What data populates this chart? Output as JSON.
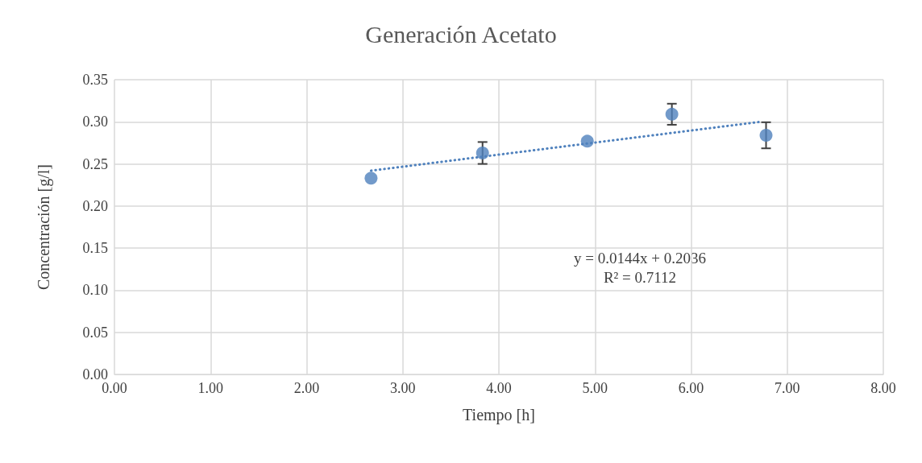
{
  "chart_data": {
    "type": "scatter",
    "title": "Generación Acetato",
    "xlabel": "Tiempo [h]",
    "ylabel": "Concentración [g/l]",
    "xlim": [
      0,
      8
    ],
    "xticks": [
      {
        "value": 0,
        "label": "0.00"
      },
      {
        "value": 1,
        "label": "1.00"
      },
      {
        "value": 2,
        "label": "2.00"
      },
      {
        "value": 3,
        "label": "3.00"
      },
      {
        "value": 4,
        "label": "4.00"
      },
      {
        "value": 5,
        "label": "5.00"
      },
      {
        "value": 6,
        "label": "6.00"
      },
      {
        "value": 7,
        "label": "7.00"
      },
      {
        "value": 8,
        "label": "8.00"
      }
    ],
    "ylim": [
      0,
      0.35
    ],
    "yticks": [
      {
        "value": 0,
        "label": "0.00"
      },
      {
        "value": 0.05,
        "label": "0.05"
      },
      {
        "value": 0.1,
        "label": "0.10"
      },
      {
        "value": 0.15,
        "label": "0.15"
      },
      {
        "value": 0.2,
        "label": "0.20"
      },
      {
        "value": 0.25,
        "label": "0.25"
      },
      {
        "value": 0.3,
        "label": "0.30"
      },
      {
        "value": 0.35,
        "label": "0.35"
      }
    ],
    "grid": true,
    "series": [
      {
        "color": "#4f81bd",
        "marker": "circle",
        "x": [
          2.67,
          3.83,
          4.92,
          5.8,
          6.78
        ],
        "values": [
          0.233,
          0.263,
          0.277,
          0.309,
          0.284
        ],
        "errors": [
          null,
          0.013,
          null,
          0.0125,
          0.0155
        ]
      },
      {
        "type": "line",
        "color": "#4f81bd",
        "marker": "none",
        "line_style": "dotted",
        "x": [
          2.67,
          6.72
        ],
        "values": [
          0.242,
          0.3
        ]
      }
    ],
    "annotations": [
      "y = 0.0144x + 0.2036",
      "R² = 0.7112"
    ]
  }
}
